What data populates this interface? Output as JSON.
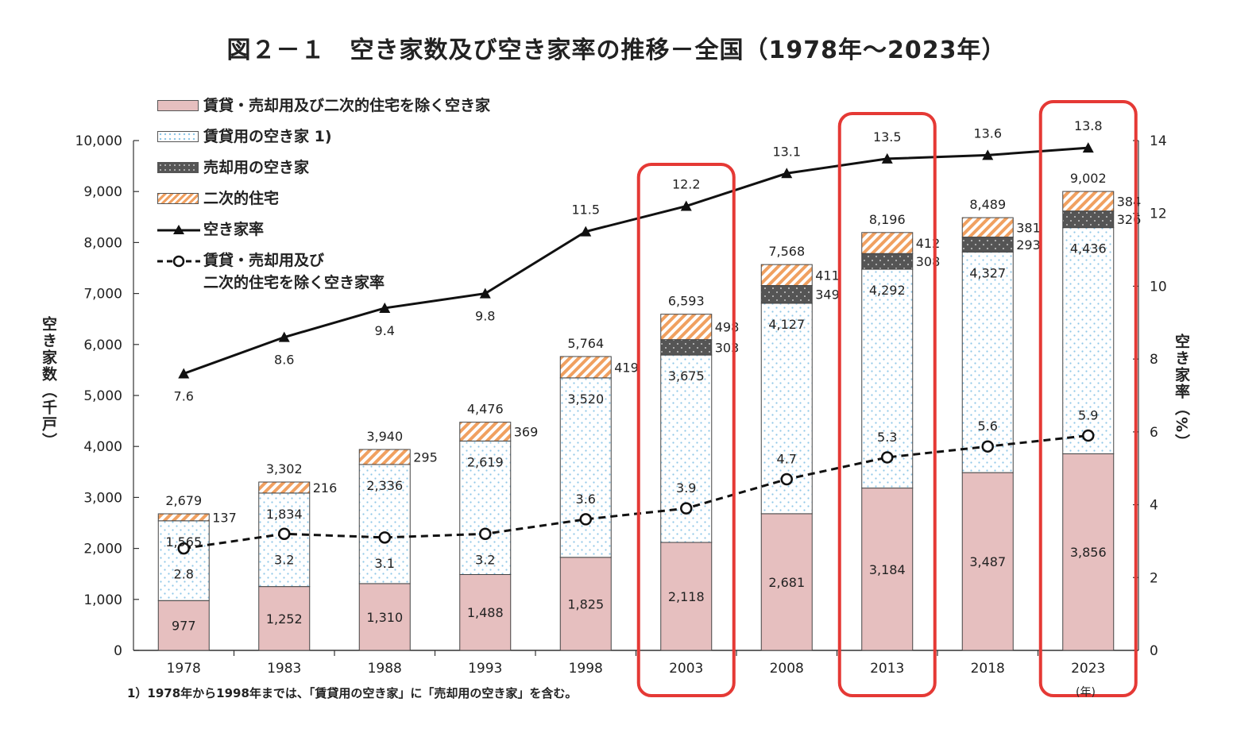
{
  "title": "図２－１　空き家数及び空き家率の推移－全国（1978年～2023年）",
  "footnote": "1）1978年から1998年までは、「賃貸用の空き家」に「売却用の空き家」を含む。",
  "colors": {
    "other": "#e6bfbf",
    "rental_dots": "#8fc7e8",
    "sale": "#555555",
    "secondary": "#f0a060",
    "highlight": "#e53935"
  },
  "legend": [
    {
      "key": "other",
      "label": "賃貸・売却用及び二次的住宅を除く空き家"
    },
    {
      "key": "rental",
      "label": "賃貸用の空き家 1)"
    },
    {
      "key": "sale",
      "label": "売却用の空き家"
    },
    {
      "key": "secondary",
      "label": "二次的住宅"
    },
    {
      "key": "rate",
      "label": "空き家率"
    },
    {
      "key": "rate_other",
      "label": "賃貸・売却用及び",
      "label2": "二次的住宅を除く空き家率"
    }
  ],
  "chart_data": {
    "type": "bar",
    "stacked": true,
    "categories": [
      "1978",
      "1983",
      "1988",
      "1993",
      "1998",
      "2003",
      "2008",
      "2013",
      "2018",
      "2023"
    ],
    "ylabel": "空き家数（千戸）",
    "y2label": "空き家率（%）",
    "xunit": "(年)",
    "ylim": [
      0,
      10000
    ],
    "y2lim": [
      0,
      14
    ],
    "yticks": [
      "0",
      "1,000",
      "2,000",
      "3,000",
      "4,000",
      "5,000",
      "6,000",
      "7,000",
      "8,000",
      "9,000",
      "10,000"
    ],
    "y2ticks": [
      "0",
      "2",
      "4",
      "6",
      "8",
      "10",
      "12",
      "14"
    ],
    "highlighted": [
      "2003",
      "2013",
      "2023"
    ],
    "series": [
      {
        "name": "賃貸・売却用及び二次的住宅を除く空き家",
        "key": "other",
        "values": [
          977,
          1252,
          1310,
          1488,
          1825,
          2118,
          2681,
          3184,
          3487,
          3856
        ],
        "labels": [
          "977",
          "1,252",
          "1,310",
          "1,488",
          "1,825",
          "2,118",
          "2,681",
          "3,184",
          "3,487",
          "3,856"
        ]
      },
      {
        "name": "賃貸用の空き家 1)",
        "key": "rental",
        "values": [
          1565,
          1834,
          2336,
          2619,
          3520,
          3675,
          4127,
          4292,
          4327,
          4436
        ],
        "labels": [
          "1,565",
          "1,834",
          "2,336",
          "2,619",
          "3,520",
          "3,675",
          "4,127",
          "4,292",
          "4,327",
          "4,436"
        ]
      },
      {
        "name": "売却用の空き家",
        "key": "sale",
        "values": [
          0,
          0,
          0,
          0,
          0,
          303,
          349,
          308,
          293,
          326
        ],
        "labels": [
          "",
          "",
          "",
          "",
          "",
          "303",
          "349",
          "308",
          "293",
          "326"
        ]
      },
      {
        "name": "二次的住宅",
        "key": "secondary",
        "values": [
          137,
          216,
          295,
          369,
          419,
          498,
          411,
          412,
          381,
          384
        ],
        "labels": [
          "137",
          "216",
          "295",
          "369",
          "419",
          "498",
          "411",
          "412",
          "381",
          "384"
        ]
      }
    ],
    "totals": [
      2679,
      3302,
      3940,
      4476,
      5764,
      6593,
      7568,
      8196,
      8489,
      9002
    ],
    "total_labels": [
      "2,679",
      "3,302",
      "3,940",
      "4,476",
      "5,764",
      "6,593",
      "7,568",
      "8,196",
      "8,489",
      "9,002"
    ],
    "lines": [
      {
        "name": "空き家率",
        "key": "rate",
        "values": [
          7.6,
          8.6,
          9.4,
          9.8,
          11.5,
          12.2,
          13.1,
          13.5,
          13.6,
          13.8
        ],
        "labels": [
          "7.6",
          "8.6",
          "9.4",
          "9.8",
          "11.5",
          "12.2",
          "13.1",
          "13.5",
          "13.6",
          "13.8"
        ]
      },
      {
        "name": "賃貸・売却用及び二次的住宅を除く空き家率",
        "key": "rate_other",
        "values": [
          2.8,
          3.2,
          3.1,
          3.2,
          3.6,
          3.9,
          4.7,
          5.3,
          5.6,
          5.9
        ],
        "labels": [
          "2.8",
          "3.2",
          "3.1",
          "3.2",
          "3.6",
          "3.9",
          "4.7",
          "5.3",
          "5.6",
          "5.9"
        ]
      }
    ]
  }
}
